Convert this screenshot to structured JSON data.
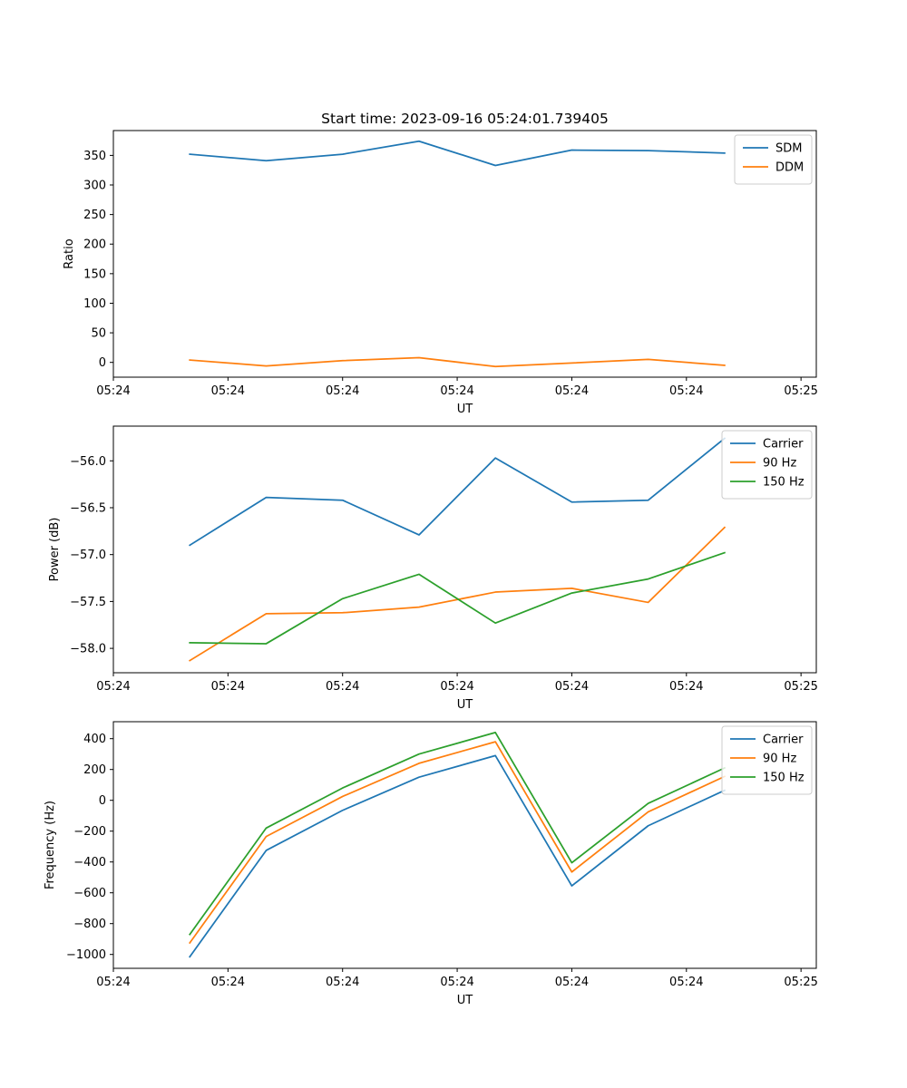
{
  "chart_data": [
    {
      "type": "line",
      "title": "Start time: 2023-09-16 05:24:01.739405",
      "xlabel": "UT",
      "ylabel": "Ratio",
      "x": [
        0.5,
        1,
        1.5,
        2,
        2.5,
        3,
        3.5,
        4
      ],
      "xlim": [
        0,
        4.6
      ],
      "xticks": [
        0,
        0.75,
        1.5,
        2.25,
        3,
        3.75,
        4.5
      ],
      "xtick_labels": [
        "05:24",
        "05:24",
        "05:24",
        "05:24",
        "05:24",
        "05:24",
        "05:25"
      ],
      "ylim": [
        -25,
        392
      ],
      "yticks": [
        0,
        50,
        100,
        150,
        200,
        250,
        300,
        350
      ],
      "ytick_labels": [
        "0",
        "50",
        "100",
        "150",
        "200",
        "250",
        "300",
        "350"
      ],
      "legend_position": "top-right",
      "grid": false,
      "series": [
        {
          "name": "SDM",
          "color": "#1f77b4",
          "values": [
            352,
            341,
            352,
            374,
            333,
            359,
            358,
            354
          ]
        },
        {
          "name": "DDM",
          "color": "#ff7f0e",
          "values": [
            4,
            -6,
            3,
            8,
            -7,
            -1,
            5,
            -5
          ]
        }
      ]
    },
    {
      "type": "line",
      "title": "",
      "xlabel": "UT",
      "ylabel": "Power (dB)",
      "x": [
        0.5,
        1,
        1.5,
        2,
        2.5,
        3,
        3.5,
        4
      ],
      "xlim": [
        0,
        4.6
      ],
      "xticks": [
        0,
        0.75,
        1.5,
        2.25,
        3,
        3.75,
        4.5
      ],
      "xtick_labels": [
        "05:24",
        "05:24",
        "05:24",
        "05:24",
        "05:24",
        "05:24",
        "05:25"
      ],
      "ylim": [
        -58.26,
        -55.63
      ],
      "yticks": [
        -58.0,
        -57.5,
        -57.0,
        -56.5,
        -56.0
      ],
      "ytick_labels": [
        "−58.0",
        "−57.5",
        "−57.0",
        "−56.5",
        "−56.0"
      ],
      "legend_position": "top-right",
      "grid": false,
      "series": [
        {
          "name": "Carrier",
          "color": "#1f77b4",
          "values": [
            -56.9,
            -56.39,
            -56.42,
            -56.79,
            -55.97,
            -56.44,
            -56.42,
            -55.76
          ]
        },
        {
          "name": "90 Hz",
          "color": "#ff7f0e",
          "values": [
            -58.13,
            -57.63,
            -57.62,
            -57.56,
            -57.4,
            -57.36,
            -57.51,
            -56.71
          ]
        },
        {
          "name": "150 Hz",
          "color": "#2ca02c",
          "values": [
            -57.94,
            -57.95,
            -57.47,
            -57.21,
            -57.73,
            -57.41,
            -57.26,
            -56.98
          ]
        }
      ]
    },
    {
      "type": "line",
      "title": "",
      "xlabel": "UT",
      "ylabel": "Frequency (Hz)",
      "x": [
        0.5,
        1,
        1.5,
        2,
        2.5,
        3,
        3.5,
        4
      ],
      "xlim": [
        0,
        4.6
      ],
      "xticks": [
        0,
        0.75,
        1.5,
        2.25,
        3,
        3.75,
        4.5
      ],
      "xtick_labels": [
        "05:24",
        "05:24",
        "05:24",
        "05:24",
        "05:24",
        "05:24",
        "05:25"
      ],
      "ylim": [
        -1090,
        510
      ],
      "yticks": [
        -1000,
        -800,
        -600,
        -400,
        -200,
        0,
        200,
        400
      ],
      "ytick_labels": [
        "−1000",
        "−800",
        "−600",
        "−400",
        "−200",
        "0",
        "200",
        "400"
      ],
      "legend_position": "top-right",
      "grid": false,
      "series": [
        {
          "name": "Carrier",
          "color": "#1f77b4",
          "values": [
            -1015,
            -325,
            -65,
            150,
            290,
            -555,
            -165,
            65
          ]
        },
        {
          "name": "90 Hz",
          "color": "#ff7f0e",
          "values": [
            -925,
            -235,
            25,
            240,
            380,
            -465,
            -75,
            155
          ]
        },
        {
          "name": "150 Hz",
          "color": "#2ca02c",
          "values": [
            -870,
            -180,
            80,
            300,
            440,
            -405,
            -20,
            210
          ]
        }
      ]
    }
  ]
}
